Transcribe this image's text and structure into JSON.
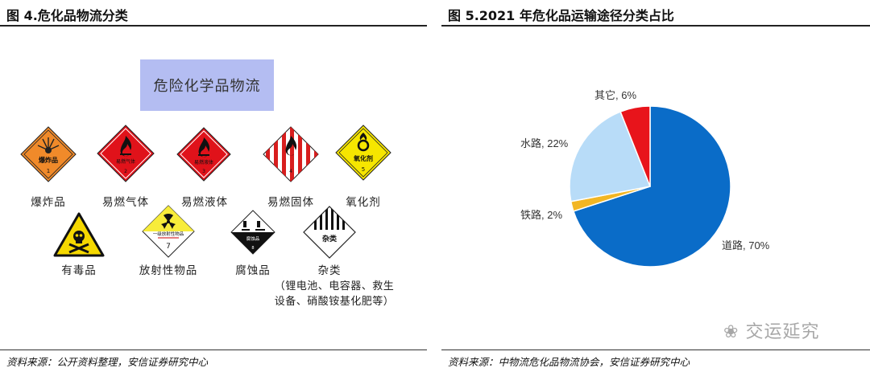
{
  "left": {
    "title": "图 4.危化品物流分类",
    "header_box": "危险化学品物流",
    "signs": [
      {
        "label": "爆炸品",
        "sign_text": "爆炸品",
        "sign_number": "1",
        "color": "#f08a2a"
      },
      {
        "label": "易燃气体",
        "sign_text": "易燃气体",
        "sign_number": "2",
        "color": "#e0121a"
      },
      {
        "label": "易燃液体",
        "sign_text": "易燃液体",
        "sign_number": "3",
        "color": "#e0121a"
      },
      {
        "label": "易燃固体",
        "sign_text": "",
        "sign_number": "4",
        "color": "#d81e1e"
      },
      {
        "label": "氧化剂",
        "sign_text": "氧化剂",
        "sign_number": "5",
        "color": "#f6e600"
      },
      {
        "label": "有毒品",
        "sign_text": "",
        "sign_number": "",
        "color": "#f5d800"
      },
      {
        "label": "放射性物品",
        "sign_text": "一级放射性物品",
        "sign_number": "7",
        "color": "#f7ec3a"
      },
      {
        "label": "腐蚀品",
        "sign_text": "腐蚀品",
        "sign_number": "8",
        "color": "#111111"
      },
      {
        "label": "杂类",
        "sign_text": "杂类",
        "sign_number": "",
        "color": "#111111"
      }
    ],
    "misc_note_line1": "（锂电池、电容器、救生",
    "misc_note_line2": "设备、硝酸铵基化肥等）",
    "source": "资料来源：公开资料整理，安信证券研究中心"
  },
  "right": {
    "title": "图 5.2021 年危化品运输途径分类占比",
    "source": "资料来源：中物流危化品物流协会，安信证券研究中心",
    "watermark": "交运延究"
  },
  "chart_data": {
    "type": "pie",
    "title": "图 5.2021 年危化品运输途径分类占比",
    "slices": [
      {
        "name": "道路",
        "value": 70,
        "label": "道路, 70%",
        "color": "#0a6cc8"
      },
      {
        "name": "铁路",
        "value": 2,
        "label": "铁路, 2%",
        "color": "#f2b624"
      },
      {
        "name": "水路",
        "value": 22,
        "label": "水路, 22%",
        "color": "#b8dcf8"
      },
      {
        "name": "其它",
        "value": 6,
        "label": "其它, 6%",
        "color": "#e8141b"
      }
    ],
    "legend": "none"
  }
}
